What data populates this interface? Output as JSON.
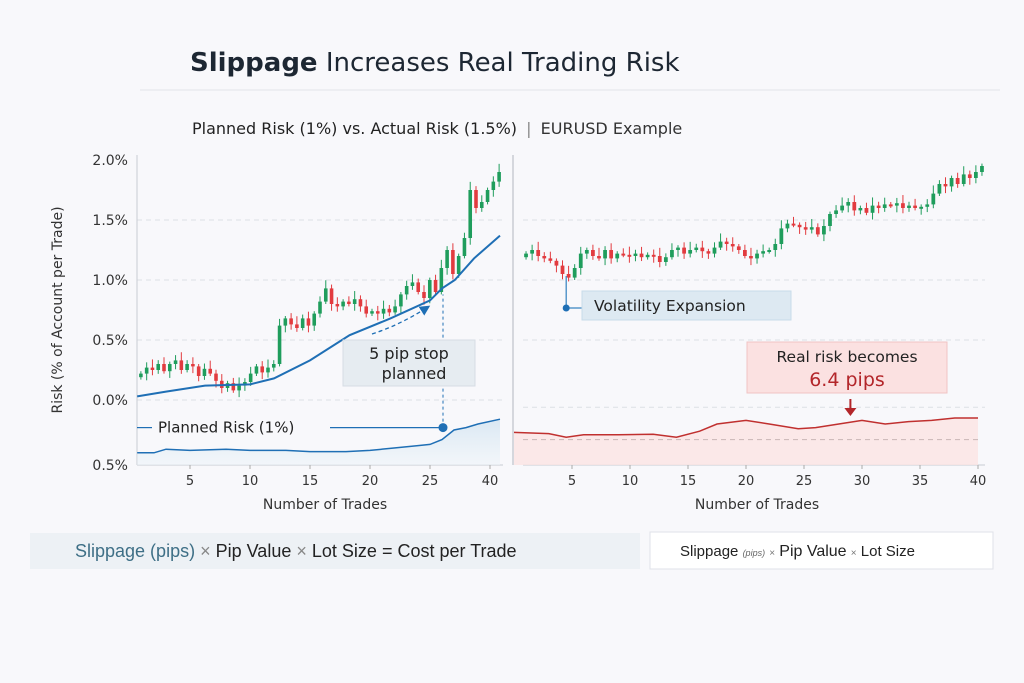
{
  "header": {
    "title_bold": "Slippage",
    "title_rest": " Increases Real Trading Risk",
    "subtitle": "Planned Risk (1%) vs. Actual Risk (1.5%)",
    "subtitle_separator": "|",
    "subtitle_example": "EURUSD Example"
  },
  "colors": {
    "bullish": "#1f9d5c",
    "bearish": "#e23b3f",
    "planned_line": "#1f6fb5",
    "actual_line": "#c0302f",
    "annotation_blue_bg": "#dde9f2",
    "annotation_red_bg": "#fbe1e1"
  },
  "chart_data": [
    {
      "type": "candlestick+line",
      "ylabel": "Risk (% of Account per Trade)",
      "xlabel": "Number of Trades",
      "ylim": [
        -0.55,
        2.0
      ],
      "y_ticks": [
        2.0,
        1.5,
        1.0,
        0.5,
        0.0,
        -0.5
      ],
      "y_tick_labels": [
        "2.0%",
        "1.5%",
        "1.0%",
        "0.5%",
        "0.0%",
        "0.5%"
      ],
      "x_ticks": [
        5,
        10,
        15,
        20,
        25,
        40
      ],
      "x_tick_labels": [
        "5",
        "10",
        "15",
        "20",
        "25",
        "40"
      ],
      "x_range": [
        0.5,
        42.5
      ],
      "grid": "dashed horizontal",
      "candle_closes": [
        0.22,
        0.27,
        0.25,
        0.3,
        0.24,
        0.3,
        0.33,
        0.25,
        0.3,
        0.28,
        0.2,
        0.26,
        0.22,
        0.16,
        0.1,
        0.14,
        0.08,
        0.12,
        0.15,
        0.22,
        0.28,
        0.23,
        0.27,
        0.3,
        0.62,
        0.68,
        0.63,
        0.6,
        0.68,
        0.62,
        0.72,
        0.82,
        0.93,
        0.8,
        0.78,
        0.82,
        0.8,
        0.84,
        0.78,
        0.72,
        0.74,
        0.72,
        0.76,
        0.73,
        0.78,
        0.88,
        0.95,
        0.98,
        0.9,
        0.85,
        1.0,
        0.9,
        1.1,
        1.25,
        1.05,
        1.2,
        1.35,
        1.75,
        1.6,
        1.65,
        1.75,
        1.82,
        1.9
      ],
      "planned_line": [
        [
          0.6,
          0.03
        ],
        [
          3,
          0.07
        ],
        [
          6.25,
          0.12
        ],
        [
          10,
          0.13
        ],
        [
          12,
          0.18
        ],
        [
          15,
          0.33
        ],
        [
          18.3,
          0.54
        ],
        [
          21.7,
          0.68
        ],
        [
          25,
          0.83
        ],
        [
          28,
          0.93
        ],
        [
          31.2,
          1.0
        ],
        [
          36,
          1.18
        ],
        [
          42.5,
          1.37
        ]
      ],
      "lower_line": [
        [
          0.6,
          -0.44
        ],
        [
          2,
          -0.44
        ],
        [
          3,
          -0.41
        ],
        [
          5,
          -0.42
        ],
        [
          8,
          -0.41
        ],
        [
          10,
          -0.42
        ],
        [
          13,
          -0.42
        ],
        [
          15,
          -0.43
        ],
        [
          18,
          -0.43
        ],
        [
          20,
          -0.42
        ],
        [
          22,
          -0.4
        ],
        [
          24,
          -0.38
        ],
        [
          25,
          -0.37
        ],
        [
          28,
          -0.33
        ],
        [
          31,
          -0.25
        ],
        [
          34,
          -0.23
        ],
        [
          37,
          -0.2
        ],
        [
          42.5,
          -0.16
        ]
      ],
      "planned_risk_level": -0.23,
      "planned_risk_label": "Planned Risk (1%)",
      "marker_trade": 28.25,
      "annotation": {
        "line1": "5 pip stop",
        "line2": "planned"
      }
    },
    {
      "type": "candlestick+line",
      "xlabel": "Number of Trades",
      "ylim": [
        -0.55,
        2.0
      ],
      "x_ticks": [
        5,
        10,
        15,
        20,
        25,
        30,
        35,
        40
      ],
      "x_tick_labels": [
        "5",
        "10",
        "15",
        "20",
        "25",
        "30",
        "35",
        "40"
      ],
      "x_range": [
        0,
        40.5
      ],
      "grid": "dashed horizontal",
      "candle_closes": [
        1.22,
        1.25,
        1.2,
        1.18,
        1.16,
        1.12,
        1.05,
        1.02,
        1.1,
        1.22,
        1.25,
        1.2,
        1.18,
        1.25,
        1.18,
        1.22,
        1.21,
        1.2,
        1.22,
        1.19,
        1.21,
        1.2,
        1.15,
        1.19,
        1.25,
        1.27,
        1.22,
        1.25,
        1.27,
        1.24,
        1.22,
        1.27,
        1.32,
        1.3,
        1.28,
        1.25,
        1.2,
        1.18,
        1.22,
        1.24,
        1.25,
        1.3,
        1.43,
        1.47,
        1.46,
        1.44,
        1.42,
        1.44,
        1.38,
        1.45,
        1.55,
        1.58,
        1.62,
        1.65,
        1.58,
        1.6,
        1.56,
        1.62,
        1.6,
        1.63,
        1.62,
        1.64,
        1.6,
        1.62,
        1.6,
        1.61,
        1.63,
        1.72,
        1.8,
        1.78,
        1.85,
        1.8,
        1.88,
        1.85,
        1.9,
        1.95
      ],
      "actual_line": [
        [
          0,
          -0.27
        ],
        [
          3,
          -0.28
        ],
        [
          4.5,
          -0.31
        ],
        [
          6,
          -0.29
        ],
        [
          9,
          -0.29
        ],
        [
          12,
          -0.285
        ],
        [
          14,
          -0.31
        ],
        [
          16,
          -0.26
        ],
        [
          17.5,
          -0.2
        ],
        [
          20,
          -0.17
        ],
        [
          22,
          -0.2
        ],
        [
          24.5,
          -0.24
        ],
        [
          26,
          -0.23
        ],
        [
          28,
          -0.2
        ],
        [
          30,
          -0.17
        ],
        [
          32,
          -0.2
        ],
        [
          34,
          -0.18
        ],
        [
          36,
          -0.17
        ],
        [
          38,
          -0.15
        ],
        [
          40,
          -0.15
        ]
      ],
      "reference_level": -0.33,
      "volatility_label": "Volatility Expansion",
      "volatility_trade": 4.5,
      "real_risk": {
        "line1": "Real risk becomes",
        "line2": "6.4 pips"
      },
      "real_risk_trade": 29
    }
  ],
  "formulas": {
    "left": {
      "slippage": "Slippage (pips)",
      "times1": "×",
      "pip_value": "Pip Value",
      "times2": "×",
      "lot_size": "Lot Size",
      "equals": "=",
      "result": "Cost per Trade"
    },
    "right": {
      "slippage": "Slippage",
      "pips": "(pips)",
      "times1": "×",
      "pip_value": "Pip Value",
      "times2": "×",
      "lot_size": "Lot Size"
    }
  }
}
